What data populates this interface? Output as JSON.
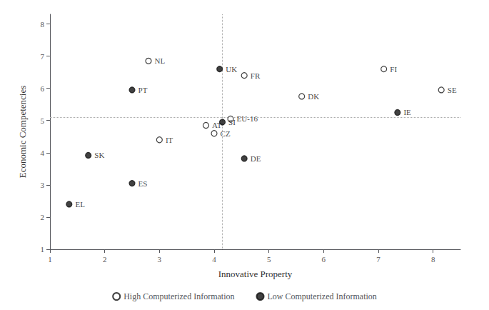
{
  "chart_data": {
    "type": "scatter",
    "xlabel": "Innovative Property",
    "ylabel": "Economic Competencies",
    "xlim": [
      1,
      8.5
    ],
    "ylim": [
      1,
      8.3
    ],
    "xticks": [
      1,
      2,
      3,
      4,
      5,
      6,
      7,
      8
    ],
    "yticks": [
      1,
      2,
      3,
      4,
      5,
      6,
      7,
      8
    ],
    "grid": false,
    "legend": "bottom",
    "data_labels": true,
    "reference_lines": [
      {
        "axis": "x",
        "value": 4.15,
        "color": "#aaaaaa",
        "line_style": "dotted"
      },
      {
        "axis": "y",
        "value": 5.1,
        "color": "#aaaaaa",
        "line_style": "dotted"
      }
    ],
    "series": [
      {
        "name": "High Computerized Information",
        "color": "#111111",
        "marker": "open_circle",
        "labels": [
          "NL",
          "FR",
          "DK",
          "AT",
          "CZ",
          "IT",
          "FI",
          "SE",
          "EU-16"
        ],
        "x": [
          2.8,
          4.55,
          5.6,
          3.85,
          4.0,
          3.0,
          7.1,
          8.15,
          4.3
        ],
        "y": [
          6.85,
          6.4,
          5.75,
          4.85,
          4.6,
          4.4,
          6.6,
          5.95,
          5.05
        ]
      },
      {
        "name": "Low Computerized Information",
        "color": "#111111",
        "marker": "filled_circle",
        "labels": [
          "UK",
          "PT",
          "SK",
          "ES",
          "EL",
          "IE",
          "SI",
          "DE"
        ],
        "x": [
          4.1,
          2.5,
          1.7,
          2.5,
          1.35,
          7.35,
          4.15,
          4.55
        ],
        "y": [
          6.6,
          5.95,
          3.92,
          3.05,
          2.4,
          5.25,
          4.95,
          3.82
        ]
      }
    ]
  }
}
